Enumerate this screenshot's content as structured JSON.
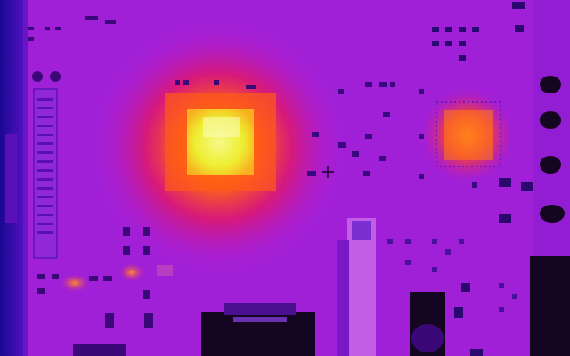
{
  "thermal_view": {
    "palette": "ironbow",
    "colors": {
      "board": "#a020d8",
      "board_cool": "#7a18c8",
      "edge_cold": "#2a0aa0",
      "hotspot_core": "#f6f86a",
      "hotspot_mid": "#ff6a10",
      "hotspot_outer": "#e01860",
      "chip_warm": "#ff7a1a",
      "component_dark": "#3a0878",
      "component_black": "#140620"
    },
    "hotspots": [
      {
        "name": "main-processor",
        "level": "hottest"
      },
      {
        "name": "secondary-chip",
        "level": "warm"
      }
    ],
    "cursor": {
      "icon": "crosshair-icon"
    }
  }
}
